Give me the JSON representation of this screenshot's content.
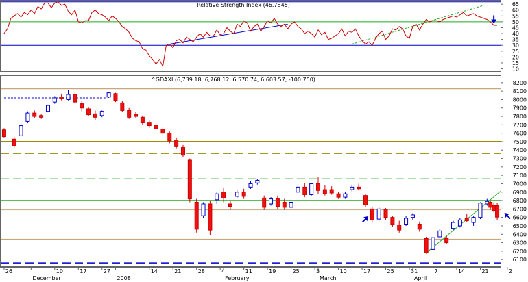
{
  "chart_data": [
    {
      "panel": "rsi",
      "type": "line",
      "title": "Relative Strength Index (46.7845)",
      "ylim": [
        8,
        68
      ],
      "yticks": [
        10,
        15,
        20,
        25,
        30,
        35,
        40,
        45,
        50,
        55,
        60,
        65
      ],
      "levels": [
        {
          "value": 67,
          "color": "#0000cc"
        },
        {
          "value": 50,
          "color": "#22aa22"
        },
        {
          "value": 30,
          "color": "#0000cc"
        }
      ],
      "x": [
        0,
        1,
        2,
        3,
        4,
        5,
        6,
        7,
        8,
        9,
        10,
        11,
        12,
        13,
        14,
        15,
        16,
        17,
        18,
        19,
        20,
        21,
        22,
        23,
        24,
        25,
        26,
        27,
        28,
        29,
        30,
        31,
        32,
        33,
        34,
        35,
        36,
        37,
        38,
        39,
        40,
        41,
        42,
        43,
        44,
        45,
        46,
        47,
        48,
        49,
        50,
        51,
        52,
        53,
        54,
        55,
        56,
        57,
        58,
        59,
        60,
        61,
        62,
        63,
        64,
        65,
        66,
        67,
        68,
        69,
        70,
        71,
        72,
        73,
        74,
        75,
        76,
        77,
        78,
        79,
        80,
        81,
        82,
        83,
        84,
        85,
        86,
        87,
        88,
        89,
        90,
        91,
        92,
        93,
        94,
        95,
        96,
        97,
        98,
        99,
        100,
        101,
        102,
        103,
        104,
        105,
        106,
        107,
        108,
        109,
        110,
        111,
        112,
        113,
        114,
        115,
        116,
        117,
        118,
        119,
        120,
        121,
        122,
        123,
        124,
        125,
        126,
        127,
        128,
        129,
        130,
        131,
        132,
        133,
        134,
        135,
        136,
        137,
        138,
        139,
        140,
        141,
        142,
        143,
        144,
        145,
        146
      ],
      "values": [
        40,
        44,
        53,
        55,
        57,
        54,
        58,
        56,
        60,
        57,
        63,
        61,
        66,
        66,
        62,
        66,
        67,
        64,
        65,
        59,
        56,
        60,
        50,
        49,
        51,
        51,
        58,
        60,
        57,
        56,
        54,
        51,
        55,
        53,
        50,
        46,
        44,
        41,
        36,
        34,
        33,
        27,
        26,
        21,
        18,
        14,
        18,
        12,
        30,
        31,
        28,
        34,
        35,
        32,
        37,
        35,
        33,
        37,
        40,
        37,
        41,
        38,
        38,
        43,
        39,
        40,
        45,
        42,
        40,
        48,
        46,
        51,
        49,
        42,
        46,
        48,
        42,
        46,
        51,
        49,
        53,
        48,
        46,
        48,
        44,
        48,
        50,
        46,
        44,
        40,
        42,
        40,
        37,
        43,
        39,
        41,
        35,
        36,
        38,
        40,
        44,
        38,
        42,
        41,
        44,
        38,
        34,
        31,
        33,
        30,
        36,
        40,
        42,
        35,
        38,
        44,
        43,
        46,
        44,
        38,
        36,
        46,
        48,
        43,
        48,
        52,
        50,
        51,
        51,
        50,
        52,
        53,
        54,
        55,
        54,
        56,
        58,
        55,
        56,
        57,
        55,
        54,
        53,
        52,
        50,
        47,
        47
      ],
      "trendlines": [
        {
          "x1": 49,
          "y1": 31,
          "x2": 84,
          "y2": 48,
          "color": "#0000cc",
          "dash": false
        },
        {
          "x1": 80,
          "y1": 38,
          "x2": 103,
          "y2": 38,
          "color": "#22aa22",
          "dash": true
        },
        {
          "x1": 103,
          "y1": 31,
          "x2": 142,
          "y2": 64,
          "color": "#22aa22",
          "dash": true
        }
      ],
      "arrows": [
        {
          "x": 145,
          "y": 52,
          "dir": "down",
          "color": "#0000cc"
        }
      ]
    },
    {
      "panel": "price",
      "type": "candlestick",
      "title": "^GDAXI (6,739.18, 6,768.12, 6,570.74, 6,603.57, -100.750)",
      "ylim": [
        6020,
        8280
      ],
      "yticks": [
        6100,
        6200,
        6300,
        6400,
        6500,
        6600,
        6700,
        6800,
        6900,
        7000,
        7100,
        7200,
        7300,
        7400,
        7500,
        7600,
        7700,
        7800,
        7900,
        8000,
        8100,
        8200
      ],
      "xlim": [
        -1,
        147
      ],
      "xticks": [
        {
          "x": 0,
          "label": "26"
        },
        {
          "x": 8,
          "label": "December"
        },
        {
          "x": 15,
          "label": "10"
        },
        {
          "x": 22,
          "label": "17"
        },
        {
          "x": 29,
          "label": "27"
        },
        {
          "x": 33,
          "label": "2008"
        },
        {
          "x": 43,
          "label": "14"
        },
        {
          "x": 50,
          "label": "21"
        },
        {
          "x": 57,
          "label": "28"
        },
        {
          "x": 64,
          "label": "4"
        },
        {
          "x": 65,
          "label": "February"
        },
        {
          "x": 71,
          "label": "11"
        },
        {
          "x": 78,
          "label": "19"
        },
        {
          "x": 85,
          "label": "25"
        },
        {
          "x": 92,
          "label": "3"
        },
        {
          "x": 93,
          "label": "March"
        },
        {
          "x": 99,
          "label": "10"
        },
        {
          "x": 106,
          "label": "17"
        },
        {
          "x": 113,
          "label": "25"
        },
        {
          "x": 120,
          "label": "31"
        },
        {
          "x": 121,
          "label": "April"
        },
        {
          "x": 127,
          "label": "7"
        },
        {
          "x": 134,
          "label": "14"
        },
        {
          "x": 141,
          "label": "21"
        },
        {
          "x": 149,
          "label": "2"
        }
      ],
      "candles": [
        {
          "x": 0,
          "o": 7640,
          "h": 7660,
          "c": 7560,
          "l": 7550
        },
        {
          "x": 3,
          "o": 7530,
          "h": 7560,
          "c": 7450,
          "l": 7430
        },
        {
          "x": 5,
          "o": 7570,
          "h": 7720,
          "c": 7690,
          "l": 7550
        },
        {
          "x": 7,
          "o": 7740,
          "h": 7860,
          "c": 7840,
          "l": 7720
        },
        {
          "x": 9,
          "o": 7840,
          "h": 7870,
          "c": 7800,
          "l": 7780
        },
        {
          "x": 11,
          "o": 7810,
          "h": 7830,
          "c": 7790,
          "l": 7770
        },
        {
          "x": 13,
          "o": 7860,
          "h": 7940,
          "c": 7930,
          "l": 7850
        },
        {
          "x": 15,
          "o": 7970,
          "h": 8040,
          "c": 8020,
          "l": 7950
        },
        {
          "x": 17,
          "o": 8030,
          "h": 8070,
          "c": 8010,
          "l": 7990
        },
        {
          "x": 19,
          "o": 8000,
          "h": 8110,
          "c": 8060,
          "l": 7990
        },
        {
          "x": 21,
          "o": 8060,
          "h": 8090,
          "c": 7970,
          "l": 7950
        },
        {
          "x": 23,
          "o": 7950,
          "h": 7980,
          "c": 7900,
          "l": 7860
        },
        {
          "x": 25,
          "o": 7890,
          "h": 7910,
          "c": 7820,
          "l": 7800
        },
        {
          "x": 27,
          "o": 7830,
          "h": 7870,
          "c": 7790,
          "l": 7760
        },
        {
          "x": 29,
          "o": 7810,
          "h": 7870,
          "c": 7860,
          "l": 7790
        },
        {
          "x": 31,
          "o": 8030,
          "h": 8090,
          "c": 8080,
          "l": 8020
        },
        {
          "x": 33,
          "o": 8070,
          "h": 8080,
          "c": 7990,
          "l": 7970
        },
        {
          "x": 35,
          "o": 7960,
          "h": 7980,
          "c": 7870,
          "l": 7850
        },
        {
          "x": 37,
          "o": 7870,
          "h": 7900,
          "c": 7790,
          "l": 7770
        },
        {
          "x": 39,
          "o": 7820,
          "h": 7850,
          "c": 7800,
          "l": 7780
        },
        {
          "x": 41,
          "o": 7790,
          "h": 7810,
          "c": 7730,
          "l": 7700
        },
        {
          "x": 43,
          "o": 7730,
          "h": 7760,
          "c": 7690,
          "l": 7660
        },
        {
          "x": 45,
          "o": 7690,
          "h": 7720,
          "c": 7650,
          "l": 7640
        },
        {
          "x": 47,
          "o": 7650,
          "h": 7680,
          "c": 7600,
          "l": 7580
        },
        {
          "x": 49,
          "o": 7600,
          "h": 7620,
          "c": 7510,
          "l": 7480
        },
        {
          "x": 51,
          "o": 7520,
          "h": 7550,
          "c": 7440,
          "l": 7420
        },
        {
          "x": 53,
          "o": 7430,
          "h": 7460,
          "c": 7340,
          "l": 7320
        },
        {
          "x": 55,
          "o": 7280,
          "h": 7300,
          "c": 6820,
          "l": 6780
        },
        {
          "x": 57,
          "o": 6780,
          "h": 6820,
          "c": 6460,
          "l": 6420
        },
        {
          "x": 59,
          "o": 6620,
          "h": 6780,
          "c": 6760,
          "l": 6590
        },
        {
          "x": 61,
          "o": 6760,
          "h": 6800,
          "c": 6450,
          "l": 6390
        },
        {
          "x": 63,
          "o": 6810,
          "h": 6900,
          "c": 6880,
          "l": 6760
        },
        {
          "x": 65,
          "o": 6900,
          "h": 6950,
          "c": 6830,
          "l": 6780
        },
        {
          "x": 67,
          "o": 6760,
          "h": 6800,
          "c": 6730,
          "l": 6690
        },
        {
          "x": 69,
          "o": 6850,
          "h": 6920,
          "c": 6900,
          "l": 6830
        },
        {
          "x": 71,
          "o": 6900,
          "h": 6940,
          "c": 6850,
          "l": 6820
        },
        {
          "x": 73,
          "o": 6960,
          "h": 7030,
          "c": 7000,
          "l": 6940
        },
        {
          "x": 75,
          "o": 7010,
          "h": 7060,
          "c": 7040,
          "l": 6990
        },
        {
          "x": 77,
          "o": 6830,
          "h": 6860,
          "c": 6720,
          "l": 6690
        },
        {
          "x": 79,
          "o": 6760,
          "h": 6840,
          "c": 6820,
          "l": 6740
        },
        {
          "x": 81,
          "o": 6820,
          "h": 6860,
          "c": 6730,
          "l": 6700
        },
        {
          "x": 83,
          "o": 6780,
          "h": 6820,
          "c": 6720,
          "l": 6690
        },
        {
          "x": 85,
          "o": 6720,
          "h": 6800,
          "c": 6780,
          "l": 6700
        },
        {
          "x": 87,
          "o": 6900,
          "h": 6980,
          "c": 6960,
          "l": 6880
        },
        {
          "x": 89,
          "o": 6960,
          "h": 7010,
          "c": 6870,
          "l": 6840
        },
        {
          "x": 91,
          "o": 6870,
          "h": 7010,
          "c": 7000,
          "l": 6860
        },
        {
          "x": 93,
          "o": 7000,
          "h": 7080,
          "c": 6920,
          "l": 6880
        },
        {
          "x": 95,
          "o": 6930,
          "h": 6980,
          "c": 6880,
          "l": 6860
        },
        {
          "x": 97,
          "o": 6930,
          "h": 6970,
          "c": 6890,
          "l": 6870
        },
        {
          "x": 99,
          "o": 6880,
          "h": 6900,
          "c": 6840,
          "l": 6820
        },
        {
          "x": 101,
          "o": 6840,
          "h": 6900,
          "c": 6880,
          "l": 6820
        },
        {
          "x": 103,
          "o": 6930,
          "h": 6990,
          "c": 6960,
          "l": 6910
        },
        {
          "x": 105,
          "o": 6960,
          "h": 7000,
          "c": 6940,
          "l": 6920
        },
        {
          "x": 107,
          "o": 6860,
          "h": 6880,
          "c": 6750,
          "l": 6720
        },
        {
          "x": 109,
          "o": 6700,
          "h": 6720,
          "c": 6570,
          "l": 6550
        },
        {
          "x": 111,
          "o": 6580,
          "h": 6720,
          "c": 6700,
          "l": 6560
        },
        {
          "x": 113,
          "o": 6690,
          "h": 6710,
          "c": 6600,
          "l": 6570
        },
        {
          "x": 115,
          "o": 6600,
          "h": 6620,
          "c": 6520,
          "l": 6490
        },
        {
          "x": 117,
          "o": 6510,
          "h": 6560,
          "c": 6450,
          "l": 6420
        },
        {
          "x": 119,
          "o": 6520,
          "h": 6620,
          "c": 6590,
          "l": 6500
        },
        {
          "x": 121,
          "o": 6600,
          "h": 6650,
          "c": 6630,
          "l": 6570
        },
        {
          "x": 123,
          "o": 6520,
          "h": 6550,
          "c": 6460,
          "l": 6430
        },
        {
          "x": 125,
          "o": 6350,
          "h": 6370,
          "c": 6180,
          "l": 6170
        },
        {
          "x": 127,
          "o": 6220,
          "h": 6380,
          "c": 6360,
          "l": 6200
        },
        {
          "x": 129,
          "o": 6370,
          "h": 6460,
          "c": 6440,
          "l": 6350
        },
        {
          "x": 131,
          "o": 6350,
          "h": 6380,
          "c": 6300,
          "l": 6280
        },
        {
          "x": 133,
          "o": 6470,
          "h": 6560,
          "c": 6540,
          "l": 6450
        },
        {
          "x": 135,
          "o": 6500,
          "h": 6590,
          "c": 6570,
          "l": 6480
        },
        {
          "x": 137,
          "o": 6590,
          "h": 6640,
          "c": 6560,
          "l": 6540
        },
        {
          "x": 139,
          "o": 6540,
          "h": 6620,
          "c": 6600,
          "l": 6500
        },
        {
          "x": 141,
          "o": 6600,
          "h": 6780,
          "c": 6770,
          "l": 6580
        },
        {
          "x": 143,
          "o": 6760,
          "h": 6820,
          "c": 6790,
          "l": 6740
        },
        {
          "x": 144,
          "o": 6780,
          "h": 6800,
          "c": 6720,
          "l": 6690
        },
        {
          "x": 145,
          "o": 6740,
          "h": 6780,
          "c": 6680,
          "l": 6660
        },
        {
          "x": 146,
          "o": 6739.18,
          "h": 6768.12,
          "c": 6603.57,
          "l": 6570.74
        }
      ],
      "levels": [
        {
          "value": 8130,
          "color": "#c8a878",
          "width": 1.5,
          "dash": false
        },
        {
          "value": 7500,
          "color": "#9c8a00",
          "width": 2,
          "dash": false
        },
        {
          "value": 7360,
          "color": "#9c8a00",
          "width": 1.5,
          "dash": true
        },
        {
          "value": 7060,
          "color": "#22aa22",
          "width": 1,
          "dash": true
        },
        {
          "value": 6800,
          "color": "#22aa22",
          "width": 1.5,
          "dash": false
        },
        {
          "value": 6690,
          "color": "#c8a878",
          "width": 1,
          "dash": false
        },
        {
          "value": 6340,
          "color": "#c8a878",
          "width": 1.5,
          "dash": false
        },
        {
          "value": 6060,
          "color": "#0000cc",
          "width": 1.5,
          "dash": true
        }
      ],
      "segments": [
        {
          "x1": 0,
          "y1": 8020,
          "x2": 30,
          "y2": 8020,
          "color": "#0000cc",
          "dash": true
        },
        {
          "x1": 20,
          "y1": 7780,
          "x2": 48,
          "y2": 7780,
          "color": "#0000cc",
          "dash": true
        },
        {
          "x1": 125,
          "y1": 6180,
          "x2": 147,
          "y2": 6910,
          "color": "#22aa22",
          "dash": false
        }
      ],
      "arrows": [
        {
          "x": 107,
          "y": 6580,
          "dir": "up-right",
          "color": "#0000cc"
        },
        {
          "x": 149,
          "y": 6620,
          "dir": "up-left",
          "color": "#0000cc"
        }
      ]
    }
  ]
}
